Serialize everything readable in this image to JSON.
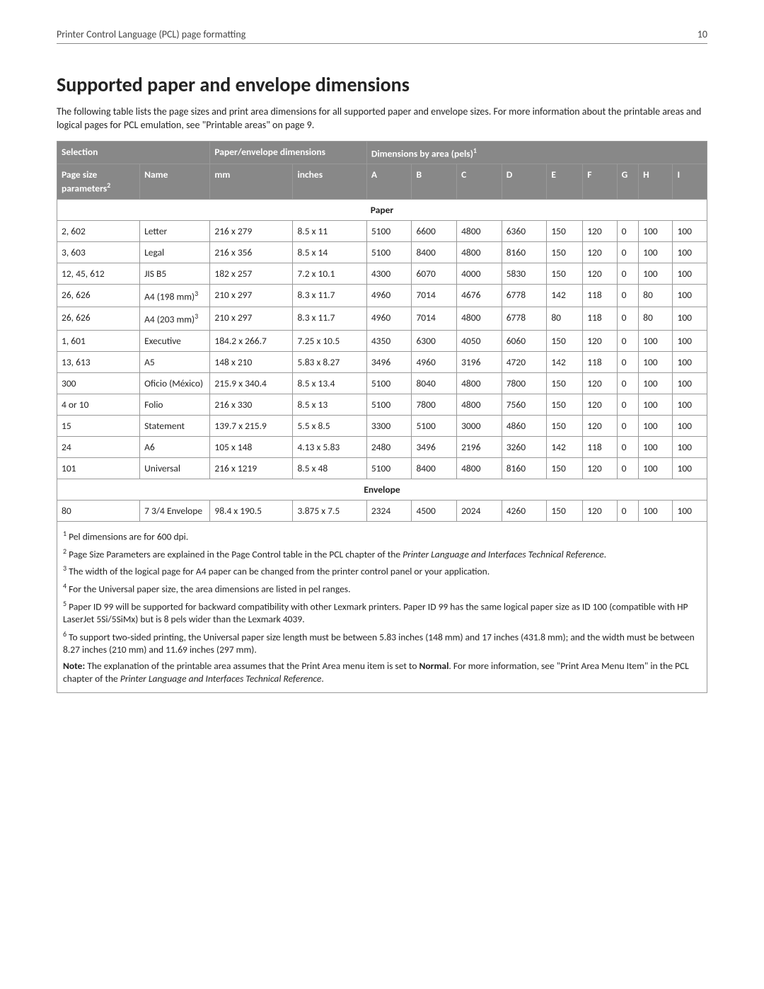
{
  "header": {
    "title": "Printer Control Language (PCL) page formatting",
    "page_number": "10"
  },
  "heading": "Supported paper and envelope dimensions",
  "intro": "The following table lists the page sizes and print area dimensions for all supported paper and envelope sizes. For more information about the printable areas and logical pages for PCL emulation, see \"Printable areas\" on page 9.",
  "table": {
    "group_headers": {
      "selection": "Selection",
      "paper_env": "Paper/envelope dimensions",
      "dim_by_area_prefix": "Dimensions by area (pels)",
      "dim_by_area_sup": "1"
    },
    "col_headers": {
      "page_size_prefix": "Page size parameters",
      "page_size_sup": "2",
      "name": "Name",
      "mm": "mm",
      "inches": "inches",
      "A": "A",
      "B": "B",
      "C": "C",
      "D": "D",
      "E": "E",
      "F": "F",
      "G": "G",
      "H": "H",
      "I": "I"
    },
    "section_paper": "Paper",
    "section_envelope": "Envelope",
    "paper_rows": [
      {
        "ps": "2, 602",
        "name": "Letter",
        "mm": "216 x 279",
        "in": "8.5 x 11",
        "A": "5100",
        "B": "6600",
        "C": "4800",
        "D": "6360",
        "E": "150",
        "F": "120",
        "G": "0",
        "H": "100",
        "I": "100"
      },
      {
        "ps": "3, 603",
        "name": "Legal",
        "mm": "216 x 356",
        "in": "8.5 x 14",
        "A": "5100",
        "B": "8400",
        "C": "4800",
        "D": "8160",
        "E": "150",
        "F": "120",
        "G": "0",
        "H": "100",
        "I": "100"
      },
      {
        "ps": "12, 45, 612",
        "name": "JIS B5",
        "mm": "182 x 257",
        "in": "7.2 x 10.1",
        "A": "4300",
        "B": "6070",
        "C": "4000",
        "D": "5830",
        "E": "150",
        "F": "120",
        "G": "0",
        "H": "100",
        "I": "100"
      },
      {
        "ps": "26, 626",
        "name_prefix": "A4 (198 mm)",
        "name_sup": "3",
        "mm": "210 x 297",
        "in": "8.3 x 11.7",
        "A": "4960",
        "B": "7014",
        "C": "4676",
        "D": "6778",
        "E": "142",
        "F": "118",
        "G": "0",
        "H": "80",
        "I": "100"
      },
      {
        "ps": "26, 626",
        "name_prefix": "A4 (203 mm)",
        "name_sup": "3",
        "mm": "210 x 297",
        "in": "8.3 x 11.7",
        "A": "4960",
        "B": "7014",
        "C": "4800",
        "D": "6778",
        "E": "80",
        "F": "118",
        "G": "0",
        "H": "80",
        "I": "100"
      },
      {
        "ps": "1, 601",
        "name": "Executive",
        "mm": "184.2 x 266.7",
        "in": "7.25 x 10.5",
        "A": "4350",
        "B": "6300",
        "C": "4050",
        "D": "6060",
        "E": "150",
        "F": "120",
        "G": "0",
        "H": "100",
        "I": "100"
      },
      {
        "ps": "13, 613",
        "name": "A5",
        "mm": "148 x 210",
        "in": "5.83 x 8.27",
        "A": "3496",
        "B": "4960",
        "C": "3196",
        "D": "4720",
        "E": "142",
        "F": "118",
        "G": "0",
        "H": "100",
        "I": "100"
      },
      {
        "ps": "300",
        "name": "Oficio (México)",
        "mm": "215.9 x 340.4",
        "in": "8.5 x 13.4",
        "A": "5100",
        "B": "8040",
        "C": "4800",
        "D": "7800",
        "E": "150",
        "F": "120",
        "G": "0",
        "H": "100",
        "I": "100"
      },
      {
        "ps": "4 or 10",
        "name": "Folio",
        "mm": "216 x 330",
        "in": "8.5 x 13",
        "A": "5100",
        "B": "7800",
        "C": "4800",
        "D": "7560",
        "E": "150",
        "F": "120",
        "G": "0",
        "H": "100",
        "I": "100"
      },
      {
        "ps": "15",
        "name": "Statement",
        "mm": "139.7 x 215.9",
        "in": "5.5 x 8.5",
        "A": "3300",
        "B": "5100",
        "C": "3000",
        "D": "4860",
        "E": "150",
        "F": "120",
        "G": "0",
        "H": "100",
        "I": "100"
      },
      {
        "ps": "24",
        "name": "A6",
        "mm": "105 x 148",
        "in": "4.13 x 5.83",
        "A": "2480",
        "B": "3496",
        "C": "2196",
        "D": "3260",
        "E": "142",
        "F": "118",
        "G": "0",
        "H": "100",
        "I": "100"
      },
      {
        "ps": "101",
        "name": "Universal",
        "mm": "216 x 1219",
        "in": "8.5 x 48",
        "A": "5100",
        "B": "8400",
        "C": "4800",
        "D": "8160",
        "E": "150",
        "F": "120",
        "G": "0",
        "H": "100",
        "I": "100"
      }
    ],
    "envelope_rows": [
      {
        "ps": "80",
        "name": "7 3/4 Envelope",
        "mm": "98.4 x 190.5",
        "in": "3.875 x 7.5",
        "A": "2324",
        "B": "4500",
        "C": "2024",
        "D": "4260",
        "E": "150",
        "F": "120",
        "G": "0",
        "H": "100",
        "I": "100"
      }
    ]
  },
  "footnotes": {
    "n1_sup": "1",
    "n1": " Pel dimensions are for 600 dpi.",
    "n2_sup": "2",
    "n2_a": " Page Size Parameters are explained in the Page Control table in the PCL chapter of the ",
    "n2_em": "Printer Language and Interfaces Technical Reference",
    "n2_b": ".",
    "n3_sup": "3",
    "n3": " The width of the logical page for A4 paper can be changed from the printer control panel or your application.",
    "n4_sup": "4",
    "n4": " For the Universal paper size, the area dimensions are listed in pel ranges.",
    "n5_sup": "5",
    "n5": " Paper ID 99 will be supported for backward compatibility with other Lexmark printers. Paper ID 99 has the same logical paper size as ID 100 (compatible with HP LaserJet 5Si/5SiMx) but is 8 pels wider than the Lexmark 4039.",
    "n6_sup": "6",
    "n6": " To support two‑sided printing, the Universal paper size length must be between 5.83 inches (148 mm) and 17 inches (431.8 mm); and the width must be between 8.27 inches (210 mm) and 11.69 inches (297 mm).",
    "note_label": "Note:",
    "note_a": " The explanation of the printable area assumes that the Print Area menu item is set to ",
    "note_bold": "Normal",
    "note_b": ". For more information, see \"Print Area Menu Item\" in the PCL chapter of the ",
    "note_em": "Printer Language and Interfaces Technical Reference",
    "note_c": "."
  }
}
